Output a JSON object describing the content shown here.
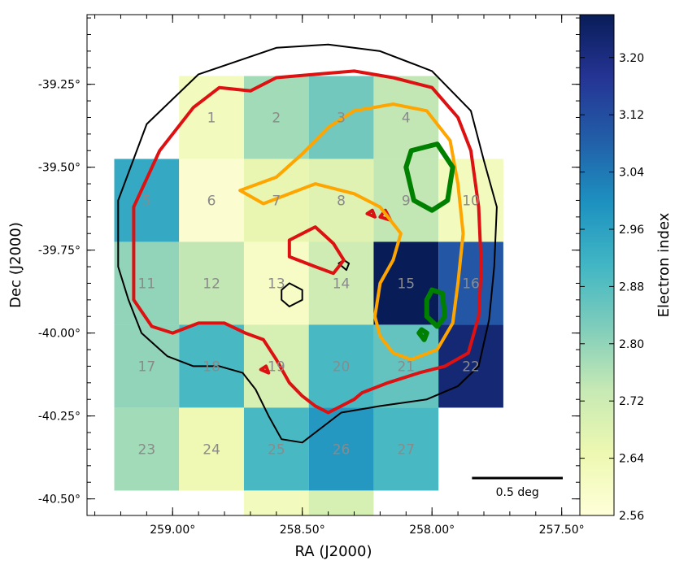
{
  "chart_data": {
    "type": "heatmap",
    "title": "",
    "xlabel": "RA (J2000)",
    "ylabel": "Dec (J2000)",
    "xlim": [
      259.33,
      257.43
    ],
    "ylim": [
      -40.55,
      -39.04
    ],
    "x_ticks": [
      {
        "value": 259.0,
        "label": "259.00°"
      },
      {
        "value": 258.5,
        "label": "258.50°"
      },
      {
        "value": 258.0,
        "label": "258.00°"
      },
      {
        "value": 257.5,
        "label": "257.50°"
      }
    ],
    "y_ticks": [
      {
        "value": -39.25,
        "label": "-39.25°"
      },
      {
        "value": -39.5,
        "label": "-39.50°"
      },
      {
        "value": -39.75,
        "label": "-39.75°"
      },
      {
        "value": -40.0,
        "label": "-40.00°"
      },
      {
        "value": -40.25,
        "label": "-40.25°"
      },
      {
        "value": -40.5,
        "label": "-40.50°"
      }
    ],
    "colorbar": {
      "label": "Electron index",
      "min": 2.56,
      "max": 3.26,
      "ticks": [
        "2.56",
        "2.64",
        "2.72",
        "2.80",
        "2.88",
        "2.96",
        "3.04",
        "3.12",
        "3.20"
      ],
      "colors": [
        "#ffffd9",
        "#edf8b1",
        "#c7e9b4",
        "#7fcdbb",
        "#41b6c4",
        "#1d91c0",
        "#225ea8",
        "#253494",
        "#081d58"
      ]
    },
    "grid_step_deg": 0.25,
    "regions": [
      {
        "id": "1",
        "ra": 258.85,
        "dec": -39.35,
        "value": 2.62
      },
      {
        "id": "2",
        "ra": 258.6,
        "dec": -39.35,
        "value": 2.78
      },
      {
        "id": "3",
        "ra": 258.35,
        "dec": -39.35,
        "value": 2.84
      },
      {
        "id": "4",
        "ra": 258.1,
        "dec": -39.35,
        "value": 2.74
      },
      {
        "id": "5",
        "ra": 259.1,
        "dec": -39.6,
        "value": 2.94
      },
      {
        "id": "6",
        "ra": 258.85,
        "dec": -39.6,
        "value": 2.58
      },
      {
        "id": "7",
        "ra": 258.6,
        "dec": -39.6,
        "value": 2.66
      },
      {
        "id": "8",
        "ra": 258.35,
        "dec": -39.6,
        "value": 2.68
      },
      {
        "id": "9",
        "ra": 258.1,
        "dec": -39.6,
        "value": 2.74
      },
      {
        "id": "10",
        "ra": 257.85,
        "dec": -39.6,
        "value": 2.62
      },
      {
        "id": "11",
        "ra": 259.1,
        "dec": -39.85,
        "value": 2.8
      },
      {
        "id": "12",
        "ra": 258.85,
        "dec": -39.85,
        "value": 2.74
      },
      {
        "id": "13",
        "ra": 258.6,
        "dec": -39.85,
        "value": 2.6
      },
      {
        "id": "14",
        "ra": 258.35,
        "dec": -39.85,
        "value": 2.72
      },
      {
        "id": "15",
        "ra": 258.1,
        "dec": -39.85,
        "value": 3.26
      },
      {
        "id": "16",
        "ra": 257.85,
        "dec": -39.85,
        "value": 3.1
      },
      {
        "id": "17",
        "ra": 259.1,
        "dec": -40.1,
        "value": 2.8
      },
      {
        "id": "18",
        "ra": 258.85,
        "dec": -40.1,
        "value": 2.9
      },
      {
        "id": "19",
        "ra": 258.6,
        "dec": -40.1,
        "value": 2.7
      },
      {
        "id": "20",
        "ra": 258.35,
        "dec": -40.1,
        "value": 2.9
      },
      {
        "id": "21",
        "ra": 258.1,
        "dec": -40.1,
        "value": 2.86
      },
      {
        "id": "22",
        "ra": 257.85,
        "dec": -40.1,
        "value": 3.22
      },
      {
        "id": "23",
        "ra": 259.1,
        "dec": -40.35,
        "value": 2.78
      },
      {
        "id": "24",
        "ra": 258.85,
        "dec": -40.35,
        "value": 2.64
      },
      {
        "id": "25",
        "ra": 258.6,
        "dec": -40.35,
        "value": 2.9
      },
      {
        "id": "26",
        "ra": 258.35,
        "dec": -40.35,
        "value": 2.98
      },
      {
        "id": "27",
        "ra": 258.1,
        "dec": -40.35,
        "value": 2.9
      },
      {
        "id": "28",
        "ra": 258.6,
        "dec": -40.6,
        "value": 2.62
      },
      {
        "id": "29",
        "ra": 258.35,
        "dec": -40.6,
        "value": 2.7
      }
    ],
    "contours": [
      {
        "color": "#000000",
        "points": [
          [
            259.21,
            -39.6
          ],
          [
            259.1,
            -39.37
          ],
          [
            258.9,
            -39.22
          ],
          [
            258.6,
            -39.14
          ],
          [
            258.4,
            -39.13
          ],
          [
            258.2,
            -39.15
          ],
          [
            258.0,
            -39.21
          ],
          [
            257.85,
            -39.33
          ],
          [
            257.8,
            -39.48
          ],
          [
            257.75,
            -39.62
          ],
          [
            257.76,
            -39.8
          ],
          [
            257.78,
            -39.96
          ],
          [
            257.82,
            -40.1
          ],
          [
            257.9,
            -40.16
          ],
          [
            258.02,
            -40.2
          ],
          [
            258.2,
            -40.22
          ],
          [
            258.35,
            -40.24
          ],
          [
            258.45,
            -40.3
          ],
          [
            258.5,
            -40.33
          ],
          [
            258.58,
            -40.32
          ],
          [
            258.63,
            -40.25
          ],
          [
            258.68,
            -40.17
          ],
          [
            258.73,
            -40.12
          ],
          [
            258.82,
            -40.1
          ],
          [
            258.92,
            -40.1
          ],
          [
            259.02,
            -40.07
          ],
          [
            259.12,
            -40.0
          ],
          [
            259.17,
            -39.9
          ],
          [
            259.21,
            -39.8
          ],
          [
            259.21,
            -39.6
          ]
        ]
      },
      {
        "color": "#000000",
        "points": [
          [
            258.58,
            -39.87
          ],
          [
            258.55,
            -39.85
          ],
          [
            258.5,
            -39.87
          ],
          [
            258.5,
            -39.9
          ],
          [
            258.55,
            -39.92
          ],
          [
            258.58,
            -39.9
          ],
          [
            258.58,
            -39.87
          ]
        ]
      },
      {
        "color": "#000000",
        "points": [
          [
            258.36,
            -39.79
          ],
          [
            258.34,
            -39.78
          ],
          [
            258.32,
            -39.79
          ],
          [
            258.33,
            -39.81
          ],
          [
            258.36,
            -39.79
          ]
        ]
      },
      {
        "color": "#dd1111",
        "points": [
          [
            259.15,
            -39.62
          ],
          [
            259.05,
            -39.45
          ],
          [
            258.92,
            -39.32
          ],
          [
            258.82,
            -39.26
          ],
          [
            258.7,
            -39.27
          ],
          [
            258.6,
            -39.23
          ],
          [
            258.45,
            -39.22
          ],
          [
            258.3,
            -39.21
          ],
          [
            258.15,
            -39.23
          ],
          [
            258.0,
            -39.26
          ],
          [
            257.9,
            -39.35
          ],
          [
            257.85,
            -39.45
          ],
          [
            257.82,
            -39.62
          ],
          [
            257.81,
            -39.8
          ],
          [
            257.82,
            -39.95
          ],
          [
            257.86,
            -40.06
          ],
          [
            257.95,
            -40.1
          ],
          [
            258.05,
            -40.12
          ],
          [
            258.17,
            -40.15
          ],
          [
            258.27,
            -40.18
          ],
          [
            258.3,
            -40.2
          ],
          [
            258.35,
            -40.22
          ],
          [
            258.4,
            -40.24
          ],
          [
            258.45,
            -40.22
          ],
          [
            258.5,
            -40.19
          ],
          [
            258.55,
            -40.15
          ],
          [
            258.6,
            -40.08
          ],
          [
            258.65,
            -40.02
          ],
          [
            258.72,
            -40.0
          ],
          [
            258.8,
            -39.97
          ],
          [
            258.9,
            -39.97
          ],
          [
            259.0,
            -40.0
          ],
          [
            259.08,
            -39.98
          ],
          [
            259.15,
            -39.9
          ],
          [
            259.15,
            -39.75
          ],
          [
            259.15,
            -39.62
          ]
        ]
      },
      {
        "color": "#dd1111",
        "points": [
          [
            258.55,
            -39.77
          ],
          [
            258.55,
            -39.72
          ],
          [
            258.45,
            -39.68
          ],
          [
            258.38,
            -39.73
          ],
          [
            258.34,
            -39.78
          ],
          [
            258.38,
            -39.82
          ],
          [
            258.45,
            -39.8
          ],
          [
            258.55,
            -39.77
          ]
        ]
      },
      {
        "color": "#dd1111",
        "points": [
          [
            258.2,
            -39.65
          ],
          [
            258.18,
            -39.63
          ],
          [
            258.16,
            -39.66
          ],
          [
            258.2,
            -39.65
          ]
        ]
      },
      {
        "color": "#dd1111",
        "points": [
          [
            258.25,
            -39.64
          ],
          [
            258.23,
            -39.63
          ],
          [
            258.22,
            -39.65
          ],
          [
            258.25,
            -39.64
          ]
        ]
      },
      {
        "color": "#dd1111",
        "points": [
          [
            258.66,
            -40.11
          ],
          [
            258.64,
            -40.1
          ],
          [
            258.63,
            -40.12
          ],
          [
            258.66,
            -40.11
          ]
        ]
      },
      {
        "color": "#ffa500",
        "points": [
          [
            258.74,
            -39.57
          ],
          [
            258.6,
            -39.53
          ],
          [
            258.5,
            -39.46
          ],
          [
            258.4,
            -39.38
          ],
          [
            258.3,
            -39.33
          ],
          [
            258.15,
            -39.31
          ],
          [
            258.02,
            -39.33
          ],
          [
            257.93,
            -39.42
          ],
          [
            257.9,
            -39.55
          ],
          [
            257.88,
            -39.7
          ],
          [
            257.9,
            -39.85
          ],
          [
            257.92,
            -39.97
          ],
          [
            257.98,
            -40.05
          ],
          [
            258.08,
            -40.08
          ],
          [
            258.15,
            -40.06
          ],
          [
            258.2,
            -40.01
          ],
          [
            258.22,
            -39.95
          ],
          [
            258.2,
            -39.85
          ],
          [
            258.15,
            -39.78
          ],
          [
            258.12,
            -39.7
          ],
          [
            258.2,
            -39.62
          ],
          [
            258.3,
            -39.58
          ],
          [
            258.45,
            -39.55
          ],
          [
            258.55,
            -39.58
          ],
          [
            258.65,
            -39.61
          ],
          [
            258.74,
            -39.57
          ]
        ]
      },
      {
        "color": "#008000",
        "points": [
          [
            258.08,
            -39.45
          ],
          [
            257.98,
            -39.43
          ],
          [
            257.92,
            -39.5
          ],
          [
            257.94,
            -39.6
          ],
          [
            258.0,
            -39.63
          ],
          [
            258.07,
            -39.6
          ],
          [
            258.1,
            -39.5
          ],
          [
            258.08,
            -39.45
          ]
        ]
      },
      {
        "color": "#008000",
        "points": [
          [
            258.0,
            -39.87
          ],
          [
            257.96,
            -39.88
          ],
          [
            257.95,
            -39.95
          ],
          [
            257.98,
            -39.98
          ],
          [
            258.02,
            -39.95
          ],
          [
            258.02,
            -39.9
          ],
          [
            258.0,
            -39.87
          ]
        ]
      },
      {
        "color": "#008000",
        "points": [
          [
            258.04,
            -39.99
          ],
          [
            258.02,
            -40.0
          ],
          [
            258.03,
            -40.02
          ],
          [
            258.05,
            -40.0
          ],
          [
            258.04,
            -39.99
          ]
        ]
      }
    ],
    "scale_bar": {
      "label": "0.5 deg",
      "length_deg": 0.5
    }
  }
}
